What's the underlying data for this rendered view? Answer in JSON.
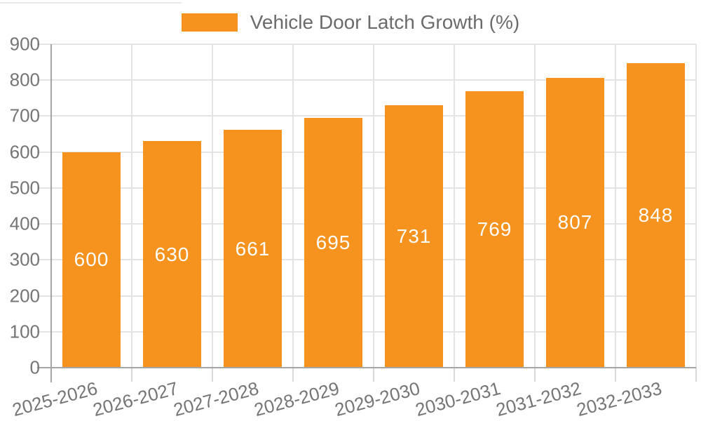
{
  "legend": {
    "label": "Vehicle Door Latch Growth (%)"
  },
  "chart_data": {
    "type": "bar",
    "title": "",
    "categories": [
      "2025-2026",
      "2026-2027",
      "2027-2028",
      "2028-2029",
      "2029-2030",
      "2030-2031",
      "2031-2032",
      "2032-2033"
    ],
    "series": [
      {
        "name": "Vehicle Door Latch Growth (%)",
        "values": [
          600,
          630,
          661,
          695,
          731,
          769,
          807,
          848
        ]
      }
    ],
    "xlabel": "",
    "ylabel": "",
    "ylim": [
      0,
      900
    ],
    "y_ticks": [
      0,
      100,
      200,
      300,
      400,
      500,
      600,
      700,
      800,
      900
    ],
    "grid": "on",
    "legend_position": "top-center",
    "bar_value_labels": "inside-center",
    "x_tick_rotation_deg": -15
  },
  "colors": {
    "bar": "#F6921E",
    "value_label": "#FFFFFF",
    "gridline": "#E4E4E4",
    "axis_line": "#A5A5A5",
    "tick_mark": "#D9D9D9",
    "tick_label": "#757575",
    "legend_text": "#6B6B6B",
    "background": "#FFFFFF"
  }
}
